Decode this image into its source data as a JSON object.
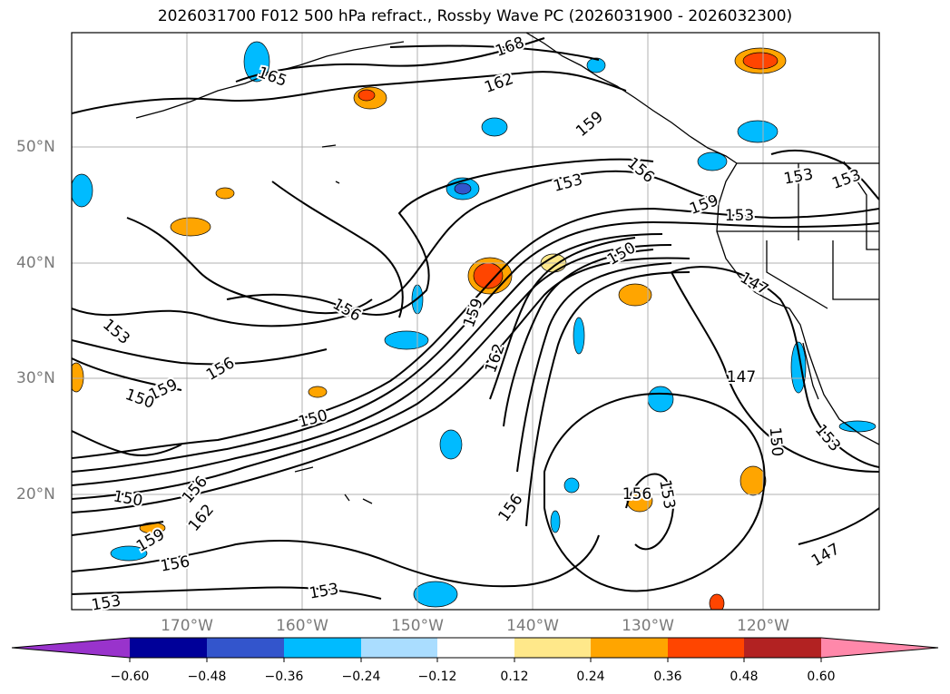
{
  "title": "2026031700 F012 500 hPa refract., Rossby Wave PC (2026031900 - 2026032300)",
  "axes": {
    "lat_labels": [
      "50°N",
      "40°N",
      "30°N",
      "20°N"
    ],
    "lon_labels": [
      "170°W",
      "160°W",
      "150°W",
      "140°W",
      "130°W",
      "120°W"
    ]
  },
  "colorbar": {
    "tick_labels": [
      "−0.60",
      "−0.48",
      "−0.36",
      "−0.24",
      "−0.12",
      "0.12",
      "0.24",
      "0.36",
      "0.48",
      "0.60"
    ],
    "colors": [
      "#9933cc",
      "#000099",
      "#3355cc",
      "#00bbff",
      "#aaddff",
      "#ffffff",
      "#ffe88a",
      "#ffa500",
      "#ff4500",
      "#b22222",
      "#ff88aa"
    ]
  },
  "contour_labels": [
    "168",
    "165",
    "162",
    "159",
    "153",
    "156",
    "153",
    "153",
    "159",
    "153",
    "150",
    "147",
    "156",
    "159",
    "162",
    "153",
    "159",
    "156",
    "150",
    "150",
    "147",
    "150",
    "153",
    "162",
    "150",
    "159",
    "156",
    "156",
    "156",
    "153",
    "147",
    "153",
    "156",
    "153"
  ]
}
